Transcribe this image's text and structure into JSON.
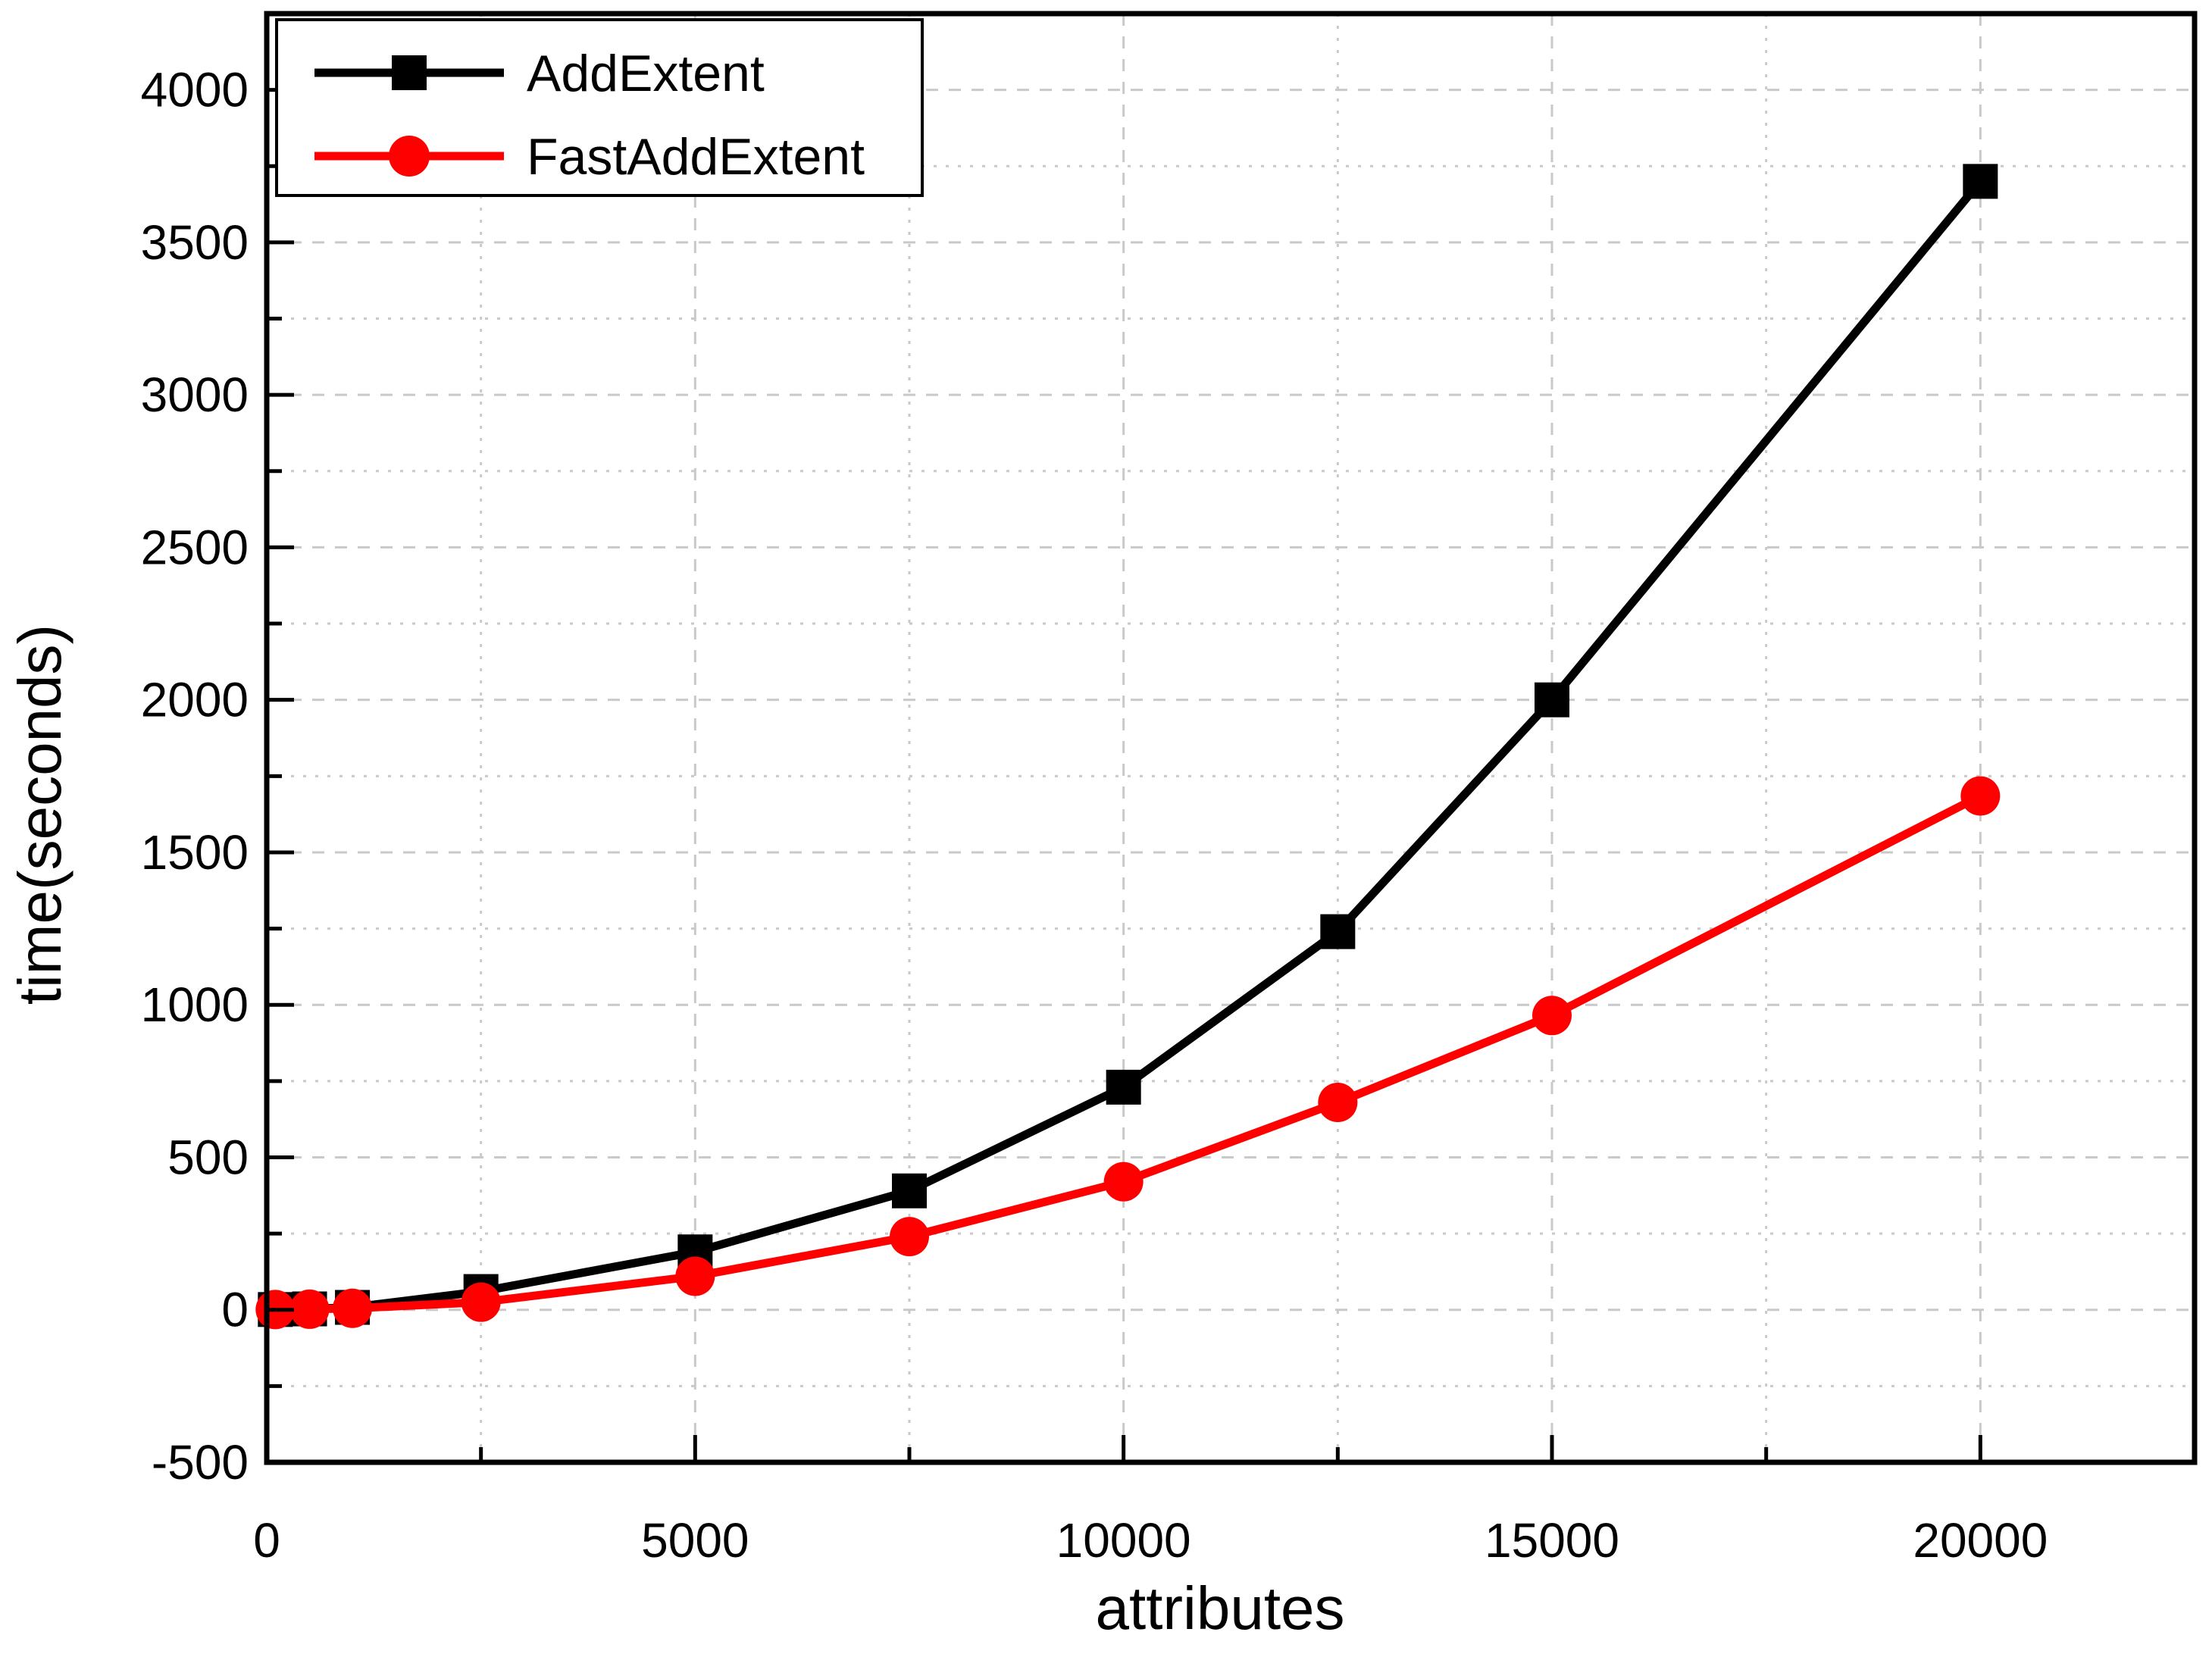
{
  "figure": {
    "background": "#ffffff"
  },
  "chart_data": {
    "type": "line",
    "title": "",
    "xlabel": "attributes",
    "ylabel": "time(seconds)",
    "xlim": [
      0,
      22500
    ],
    "ylim": [
      -500,
      4250
    ],
    "x_major_ticks": [
      0,
      5000,
      10000,
      15000,
      20000
    ],
    "x_minor_step": 2500,
    "y_major_ticks": [
      -500,
      0,
      500,
      1000,
      1500,
      2000,
      2500,
      3000,
      3500,
      4000
    ],
    "y_minor_step": 250,
    "grid": true,
    "grid_color": "#c9c9c9",
    "axis_color": "#000000",
    "legend_position": "top-left",
    "x": [
      100,
      500,
      1000,
      2500,
      5000,
      7500,
      10000,
      12500,
      15000,
      20000
    ],
    "series": [
      {
        "name": "AddExtent",
        "color": "#000000",
        "marker": "square",
        "values": [
          1,
          3,
          8,
          60,
          190,
          390,
          730,
          1240,
          2000,
          3700
        ]
      },
      {
        "name": "FastAddExtent",
        "color": "#ff0000",
        "marker": "circle",
        "values": [
          1,
          2,
          5,
          25,
          110,
          240,
          420,
          680,
          965,
          1685
        ]
      }
    ]
  }
}
